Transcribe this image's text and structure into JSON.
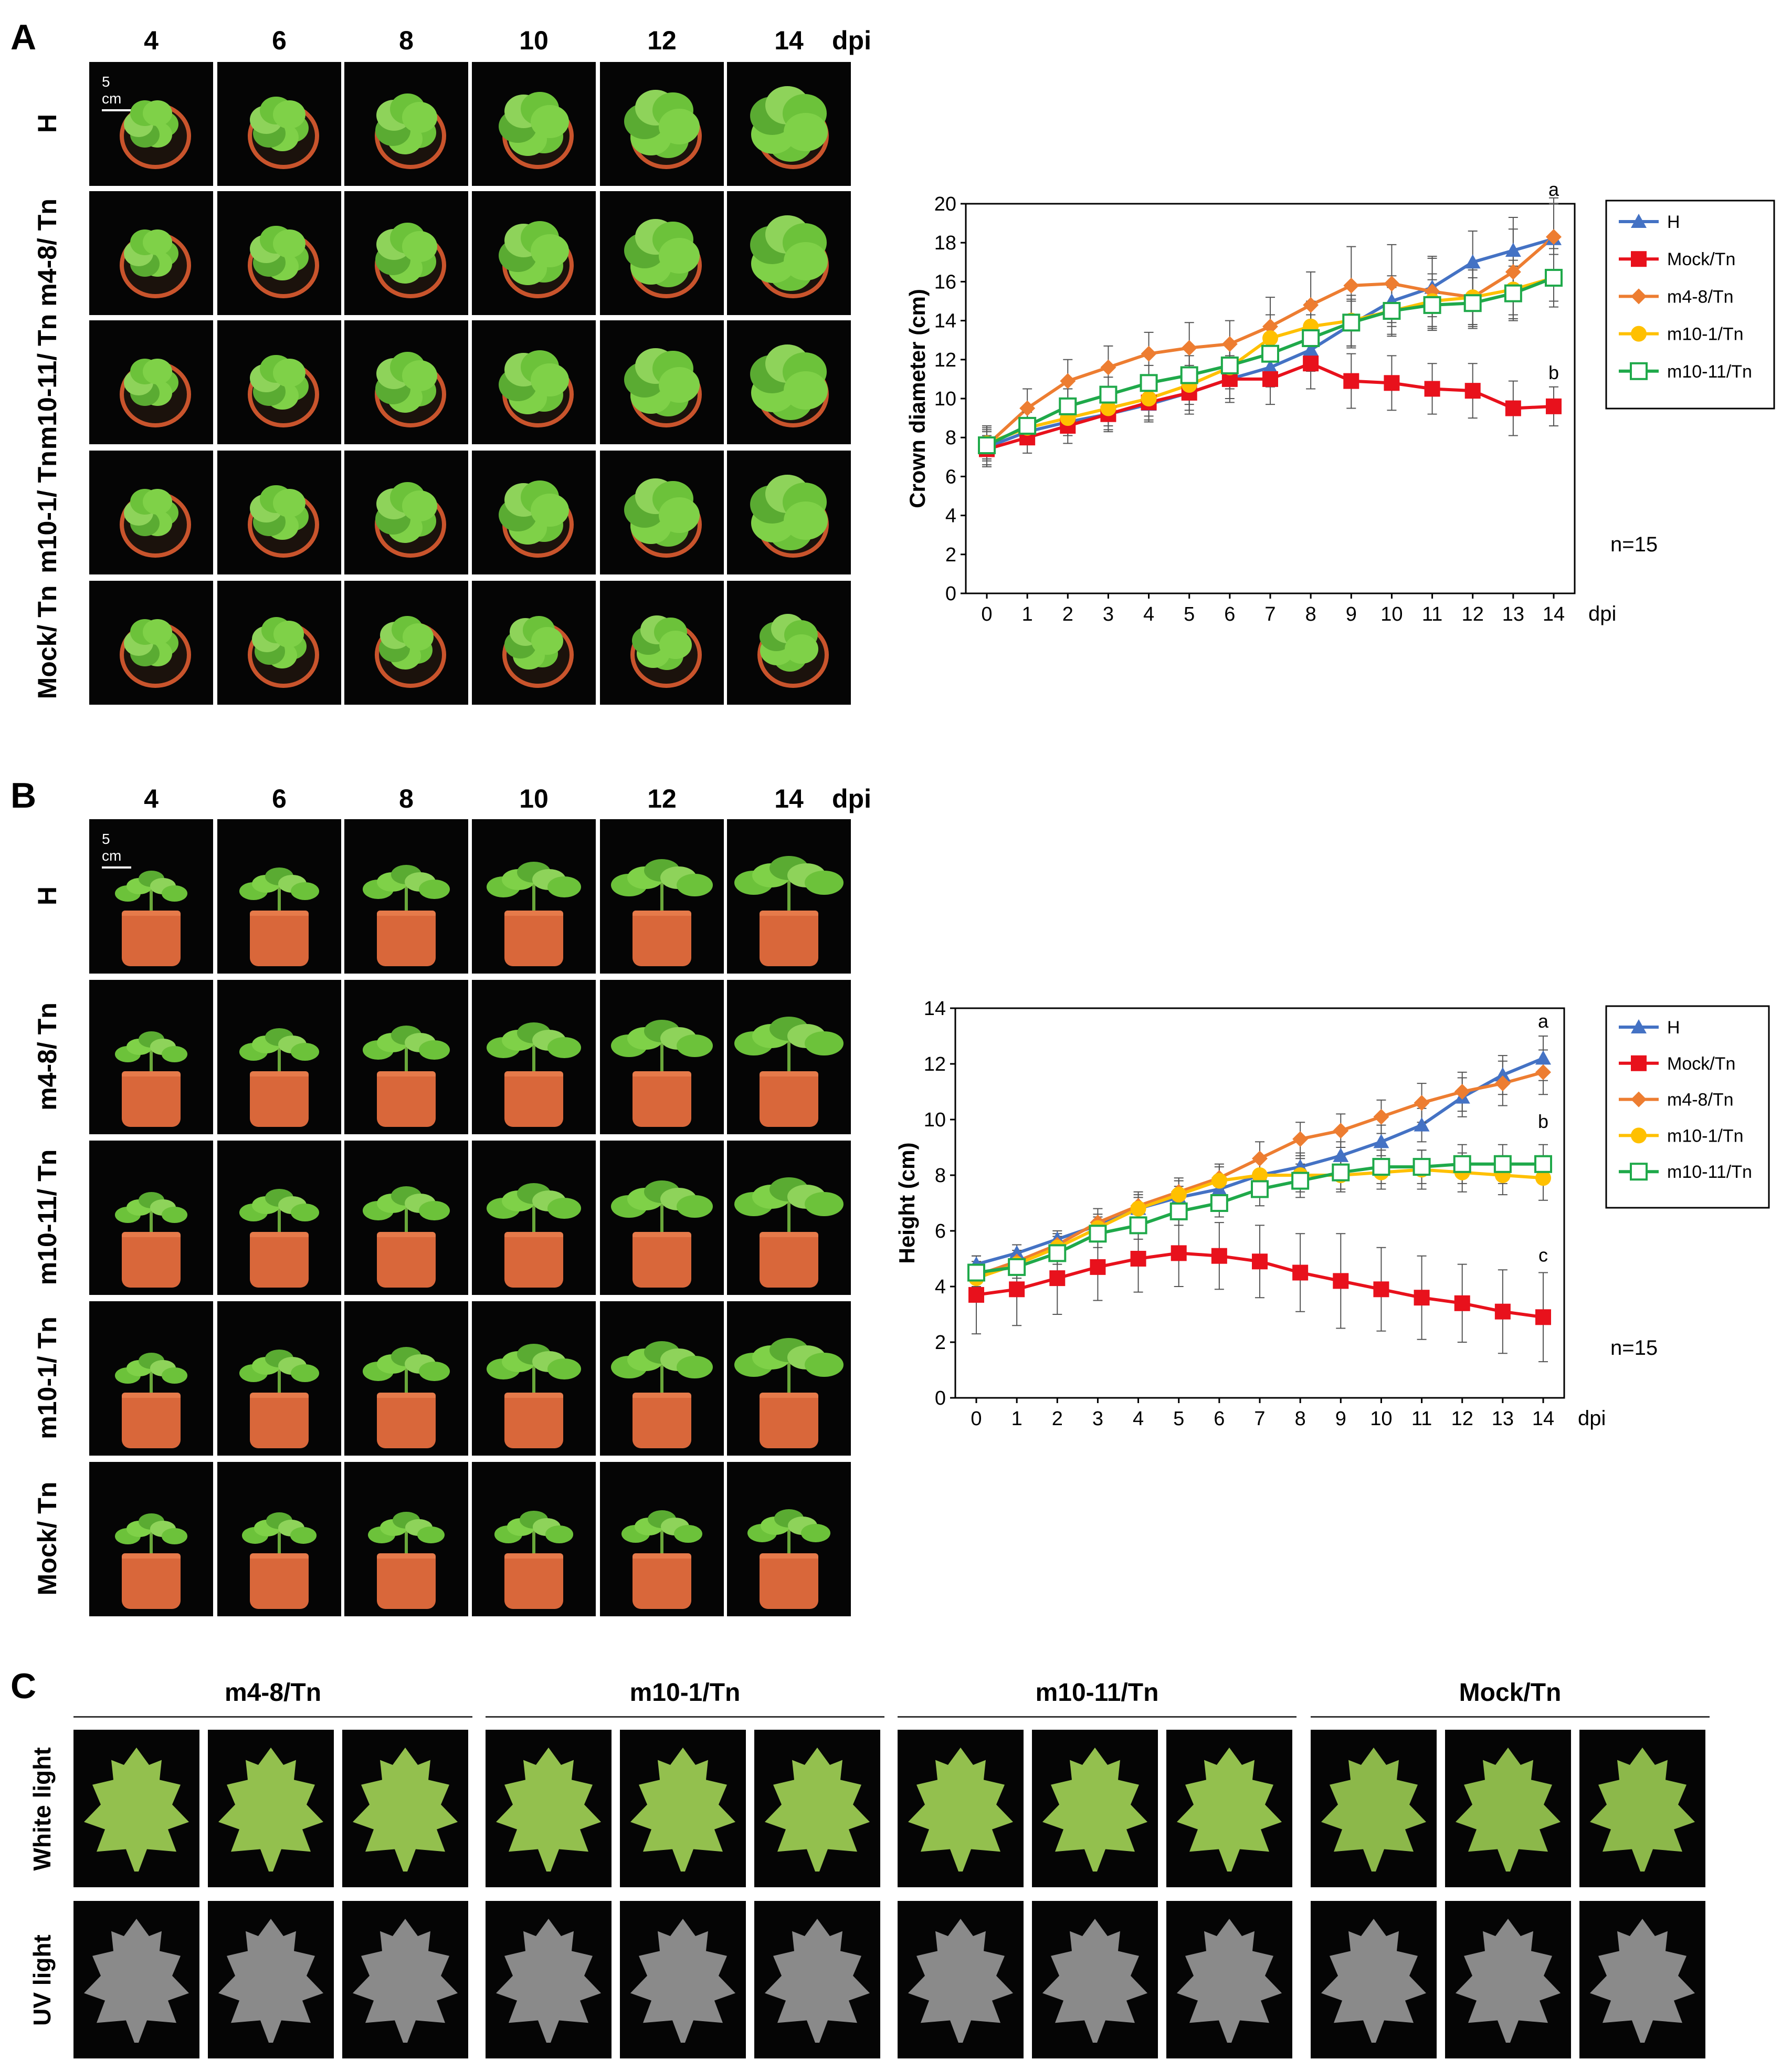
{
  "panels": {
    "A": {
      "letter": "A",
      "days": [
        "4",
        "6",
        "8",
        "10",
        "12",
        "14"
      ],
      "dpi": "dpi",
      "scale": "5 cm",
      "rows": [
        {
          "label": "H"
        },
        {
          "label": "m4-8/ Tn"
        },
        {
          "label": "m10-11/ Tn"
        },
        {
          "label": "m10-1/ Tn"
        },
        {
          "label": "Mock/ Tn"
        }
      ]
    },
    "B": {
      "letter": "B",
      "days": [
        "4",
        "6",
        "8",
        "10",
        "12",
        "14"
      ],
      "dpi": "dpi",
      "scale": "5 cm",
      "rows": [
        {
          "label": "H"
        },
        {
          "label": "m4-8/ Tn"
        },
        {
          "label": "m10-11/ Tn"
        },
        {
          "label": "m10-1/ Tn"
        },
        {
          "label": "Mock/ Tn"
        }
      ]
    },
    "C": {
      "letter": "C",
      "groups": [
        "m4-8/Tn",
        "m10-1/Tn",
        "m10-11/Tn",
        "Mock/Tn"
      ],
      "rows": [
        "White light",
        "UV light"
      ]
    }
  },
  "colors": {
    "H": "#4472c4",
    "Mock/Tn": "#e8111c",
    "m4-8/Tn": "#ed7d31",
    "m10-1/Tn": "#ffc000",
    "m10-11/Tn": "#1fa94a"
  },
  "chart_data": [
    {
      "type": "line",
      "ylabel": "Crown diameter (cm)",
      "xlabel": "dpi",
      "x": [
        0,
        1,
        2,
        3,
        4,
        5,
        6,
        7,
        8,
        9,
        10,
        11,
        12,
        13,
        14
      ],
      "ylim": [
        0,
        20
      ],
      "yticks": [
        0,
        2,
        4,
        6,
        8,
        10,
        12,
        14,
        16,
        18,
        20
      ],
      "note": "n=15",
      "annotations": [
        {
          "x": 14,
          "y": 20.4,
          "text": "a"
        },
        {
          "x": 14,
          "y": 11.0,
          "text": "b"
        }
      ],
      "series": [
        {
          "name": "H",
          "marker": "triangle",
          "values": [
            7.5,
            8.3,
            8.8,
            9.2,
            9.7,
            10.3,
            11.0,
            11.6,
            12.5,
            13.8,
            15.0,
            15.7,
            17.0,
            17.6,
            18.2
          ],
          "err": [
            0.6,
            0.6,
            0.7,
            0.8,
            0.8,
            0.9,
            1.0,
            1.0,
            1.1,
            1.2,
            1.3,
            1.5,
            1.6,
            1.7,
            1.8
          ]
        },
        {
          "name": "Mock/Tn",
          "marker": "square",
          "values": [
            7.4,
            8.0,
            8.6,
            9.2,
            9.8,
            10.3,
            11.0,
            11.0,
            11.8,
            10.9,
            10.8,
            10.5,
            10.4,
            9.5,
            9.6
          ],
          "err": [
            0.9,
            0.8,
            0.9,
            0.9,
            1.0,
            1.1,
            1.2,
            1.3,
            1.3,
            1.4,
            1.4,
            1.3,
            1.4,
            1.4,
            1.0
          ]
        },
        {
          "name": "m4-8/Tn",
          "marker": "diamond",
          "values": [
            7.6,
            9.5,
            10.9,
            11.6,
            12.3,
            12.6,
            12.8,
            13.7,
            14.8,
            15.8,
            15.9,
            15.5,
            15.2,
            16.5,
            18.3
          ],
          "err": [
            1.0,
            1.0,
            1.1,
            1.1,
            1.1,
            1.3,
            1.2,
            1.5,
            1.7,
            2.0,
            2.0,
            1.8,
            1.5,
            2.2,
            2.0
          ]
        },
        {
          "name": "m10-1/Tn",
          "marker": "circle",
          "values": [
            7.7,
            8.5,
            9.0,
            9.5,
            10.0,
            10.7,
            11.6,
            13.1,
            13.7,
            14.0,
            14.5,
            15.0,
            15.2,
            15.6,
            16.2
          ],
          "err": [
            0.8,
            0.8,
            0.9,
            0.9,
            0.9,
            1.0,
            1.1,
            1.2,
            1.3,
            1.3,
            1.3,
            1.4,
            1.4,
            1.5,
            1.5
          ]
        },
        {
          "name": "m10-11/Tn",
          "marker": "open-square",
          "values": [
            7.6,
            8.6,
            9.6,
            10.2,
            10.8,
            11.2,
            11.7,
            12.3,
            13.1,
            13.9,
            14.5,
            14.8,
            14.9,
            15.4,
            16.2
          ],
          "err": [
            0.8,
            0.8,
            0.9,
            0.9,
            0.9,
            1.0,
            1.0,
            1.1,
            1.2,
            1.2,
            1.2,
            1.3,
            1.3,
            1.4,
            1.2
          ]
        }
      ]
    },
    {
      "type": "line",
      "ylabel": "Height (cm)",
      "xlabel": "dpi",
      "x": [
        0,
        1,
        2,
        3,
        4,
        5,
        6,
        7,
        8,
        9,
        10,
        11,
        12,
        13,
        14
      ],
      "ylim": [
        0,
        14
      ],
      "yticks": [
        0,
        2,
        4,
        6,
        8,
        10,
        12,
        14
      ],
      "note": "n=15",
      "annotations": [
        {
          "x": 14,
          "y": 13.3,
          "text": "a"
        },
        {
          "x": 14,
          "y": 9.7,
          "text": "b"
        },
        {
          "x": 14,
          "y": 4.9,
          "text": "c"
        }
      ],
      "series": [
        {
          "name": "H",
          "marker": "triangle",
          "values": [
            4.8,
            5.2,
            5.7,
            6.2,
            6.8,
            7.2,
            7.5,
            8.0,
            8.3,
            8.7,
            9.2,
            9.8,
            10.8,
            11.6,
            12.2
          ],
          "err": [
            0.3,
            0.3,
            0.3,
            0.4,
            0.4,
            0.4,
            0.5,
            0.5,
            0.5,
            0.5,
            0.6,
            0.6,
            0.7,
            0.7,
            0.8
          ]
        },
        {
          "name": "Mock/Tn",
          "marker": "square",
          "values": [
            3.7,
            3.9,
            4.3,
            4.7,
            5.0,
            5.2,
            5.1,
            4.9,
            4.5,
            4.2,
            3.9,
            3.6,
            3.4,
            3.1,
            2.9
          ],
          "err": [
            1.4,
            1.3,
            1.3,
            1.2,
            1.2,
            1.2,
            1.2,
            1.3,
            1.4,
            1.7,
            1.5,
            1.5,
            1.4,
            1.5,
            1.6
          ]
        },
        {
          "name": "m4-8/Tn",
          "marker": "diamond",
          "values": [
            4.4,
            4.9,
            5.5,
            6.3,
            6.9,
            7.4,
            7.9,
            8.6,
            9.3,
            9.6,
            10.1,
            10.6,
            11.0,
            11.3,
            11.7
          ],
          "err": [
            0.4,
            0.4,
            0.4,
            0.5,
            0.5,
            0.5,
            0.5,
            0.6,
            0.6,
            0.6,
            0.6,
            0.7,
            0.7,
            0.8,
            0.8
          ]
        },
        {
          "name": "m10-1/Tn",
          "marker": "circle",
          "values": [
            4.3,
            4.8,
            5.4,
            6.1,
            6.8,
            7.3,
            7.8,
            8.0,
            8.0,
            8.0,
            8.1,
            8.2,
            8.1,
            8.0,
            7.9
          ],
          "err": [
            0.3,
            0.3,
            0.4,
            0.4,
            0.5,
            0.5,
            0.5,
            0.6,
            0.6,
            0.6,
            0.6,
            0.7,
            0.7,
            0.7,
            0.8
          ]
        },
        {
          "name": "m10-11/Tn",
          "marker": "open-square",
          "values": [
            4.5,
            4.7,
            5.2,
            5.9,
            6.2,
            6.7,
            7.0,
            7.5,
            7.8,
            8.1,
            8.3,
            8.3,
            8.4,
            8.4,
            8.4
          ],
          "err": [
            0.4,
            0.4,
            0.4,
            0.5,
            0.5,
            0.5,
            0.5,
            0.6,
            0.6,
            0.6,
            0.6,
            0.6,
            0.7,
            0.7,
            0.7
          ]
        }
      ]
    }
  ]
}
